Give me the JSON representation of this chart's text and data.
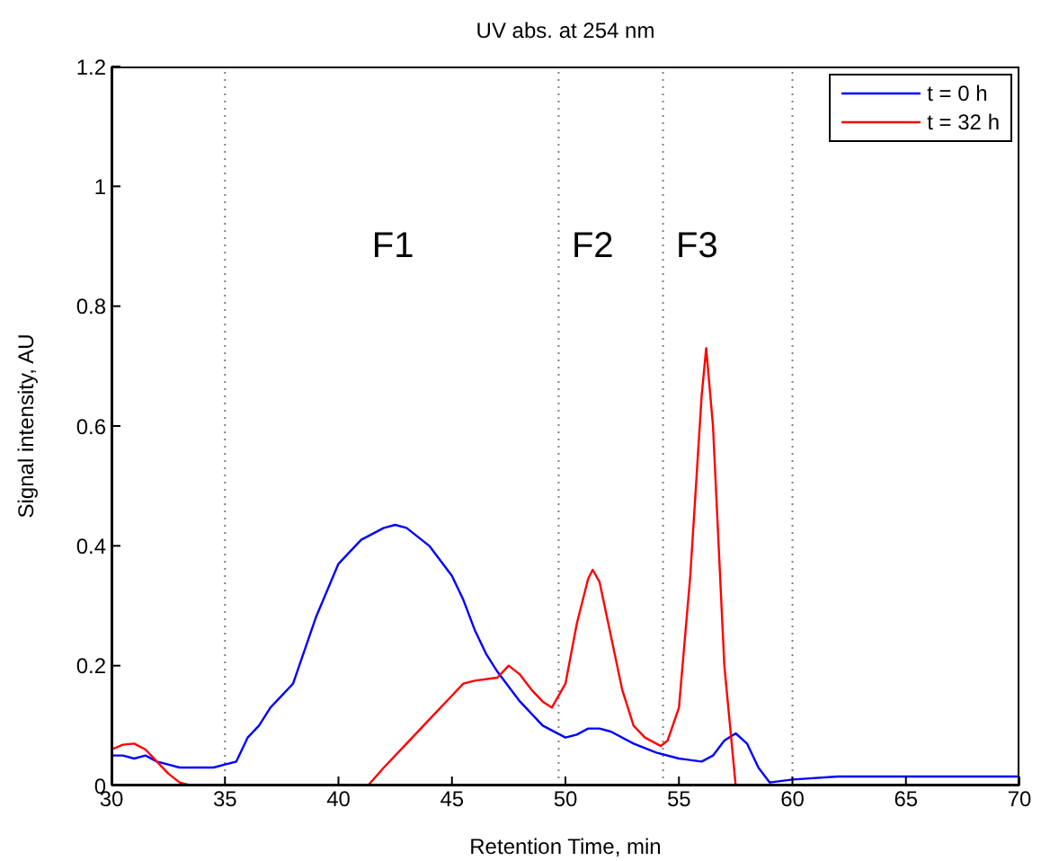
{
  "chart_data": {
    "type": "line",
    "title": "UV abs. at 254 nm",
    "xlabel": "Retention Time, min",
    "ylabel": "Signal intensity, AU",
    "xlim": [
      30,
      70
    ],
    "xticks": [
      30,
      35,
      40,
      45,
      50,
      55,
      60,
      65,
      70
    ],
    "ylim": [
      0,
      1.2
    ],
    "yticks": [
      0,
      0.2,
      0.4,
      0.6,
      0.8,
      1,
      1.2
    ],
    "grid": false,
    "legend": "top right",
    "marker": "none",
    "line_style": "solid",
    "series": [
      {
        "name": "t = 0 h",
        "color": "#0000ff",
        "x": [
          30,
          30.5,
          31,
          31.5,
          32,
          32.5,
          33,
          33.5,
          34,
          34.5,
          35,
          35.5,
          36,
          36.5,
          37,
          38,
          39,
          40,
          41,
          42,
          42.5,
          43,
          44,
          45,
          45.5,
          46,
          46.5,
          47,
          48,
          49,
          50,
          50.5,
          51,
          51.5,
          52,
          53,
          54,
          55,
          56,
          56.5,
          57,
          57.5,
          58,
          58.5,
          59,
          60,
          62,
          65,
          68,
          70
        ],
        "values": [
          0.05,
          0.05,
          0.045,
          0.05,
          0.04,
          0.035,
          0.03,
          0.03,
          0.03,
          0.03,
          0.035,
          0.04,
          0.08,
          0.1,
          0.13,
          0.17,
          0.28,
          0.37,
          0.41,
          0.43,
          0.435,
          0.43,
          0.4,
          0.35,
          0.31,
          0.26,
          0.22,
          0.19,
          0.14,
          0.1,
          0.08,
          0.085,
          0.095,
          0.095,
          0.09,
          0.07,
          0.055,
          0.045,
          0.04,
          0.05,
          0.075,
          0.087,
          0.07,
          0.03,
          0.005,
          0.01,
          0.015,
          0.015,
          0.015,
          0.015
        ]
      },
      {
        "name": "t = 32 h",
        "color": "#ff0000",
        "x": [
          30,
          30.5,
          31,
          31.5,
          32,
          32.5,
          33,
          33.5,
          41.3,
          42,
          43,
          44,
          45,
          45.5,
          46,
          47,
          47.5,
          48,
          48.5,
          49,
          49.4,
          50,
          50.5,
          51,
          51.2,
          51.5,
          52,
          52.5,
          53,
          53.5,
          54,
          54.2,
          54.5,
          55,
          55.5,
          56,
          56.2,
          56.5,
          57,
          57.5,
          58,
          70
        ],
        "values": [
          0.06,
          0.068,
          0.07,
          0.06,
          0.04,
          0.02,
          0.005,
          0,
          0,
          0.03,
          0.07,
          0.11,
          0.15,
          0.17,
          0.175,
          0.18,
          0.2,
          0.185,
          0.16,
          0.14,
          0.13,
          0.17,
          0.27,
          0.345,
          0.36,
          0.34,
          0.25,
          0.16,
          0.1,
          0.08,
          0.07,
          0.066,
          0.075,
          0.13,
          0.35,
          0.65,
          0.73,
          0.6,
          0.2,
          0,
          0,
          0
        ]
      }
    ],
    "ref_lines": [
      {
        "axis": "x",
        "value": 35,
        "color": "#808080",
        "line_style": "dotted"
      },
      {
        "axis": "x",
        "value": 49.7,
        "color": "#808080",
        "line_style": "dotted"
      },
      {
        "axis": "x",
        "value": 54.3,
        "color": "#808080",
        "line_style": "dotted"
      },
      {
        "axis": "x",
        "value": 60,
        "color": "#808080",
        "line_style": "dotted"
      }
    ],
    "annotations": [
      "F1",
      "F2",
      "F3"
    ]
  }
}
